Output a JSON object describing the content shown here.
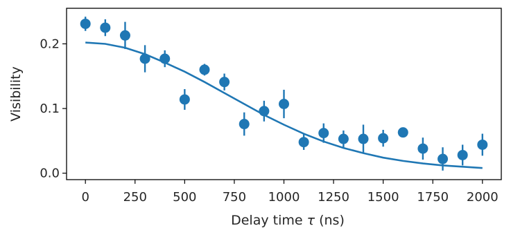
{
  "chart_data": {
    "type": "scatter",
    "xlabel_text": "Delay time ",
    "xlabel_symbol": "τ",
    "xlabel_unit": " (ns)",
    "ylabel": "Visibility",
    "xlim": [
      -95,
      2095
    ],
    "ylim": [
      -0.01,
      0.255
    ],
    "grid": false,
    "x_ticks": [
      0,
      250,
      500,
      750,
      1000,
      1250,
      1500,
      1750,
      2000
    ],
    "x_tick_labels": [
      "0",
      "250",
      "500",
      "750",
      "1000",
      "1250",
      "1500",
      "1750",
      "2000"
    ],
    "y_ticks": [
      0.0,
      0.1,
      0.2
    ],
    "y_tick_labels": [
      "0.0",
      "0.1",
      "0.2"
    ],
    "colors": {
      "marker": "#1f77b4",
      "fit": "#1f77b4",
      "axes": "#000000"
    },
    "series": [
      {
        "kind": "points_with_errorbars",
        "x": [
          0,
          100,
          200,
          300,
          400,
          500,
          600,
          700,
          800,
          900,
          1000,
          1100,
          1200,
          1300,
          1400,
          1500,
          1600,
          1700,
          1800,
          1900,
          2000
        ],
        "y": [
          0.231,
          0.225,
          0.213,
          0.177,
          0.177,
          0.114,
          0.16,
          0.141,
          0.076,
          0.096,
          0.107,
          0.048,
          0.062,
          0.053,
          0.053,
          0.054,
          0.063,
          0.038,
          0.022,
          0.028,
          0.044
        ],
        "err": [
          0.011,
          0.013,
          0.021,
          0.021,
          0.013,
          0.016,
          0.009,
          0.013,
          0.018,
          0.016,
          0.022,
          0.012,
          0.015,
          0.013,
          0.022,
          0.013,
          0.004,
          0.017,
          0.018,
          0.016,
          0.017
        ]
      },
      {
        "kind": "fit_line",
        "x": [
          0,
          100,
          200,
          300,
          400,
          500,
          600,
          700,
          800,
          900,
          1000,
          1100,
          1200,
          1300,
          1400,
          1500,
          1600,
          1700,
          1800,
          1900,
          2000
        ],
        "y": [
          0.202,
          0.2,
          0.194,
          0.184,
          0.171,
          0.157,
          0.141,
          0.124,
          0.107,
          0.09,
          0.075,
          0.061,
          0.049,
          0.039,
          0.031,
          0.024,
          0.019,
          0.015,
          0.012,
          0.01,
          0.008
        ]
      }
    ]
  }
}
